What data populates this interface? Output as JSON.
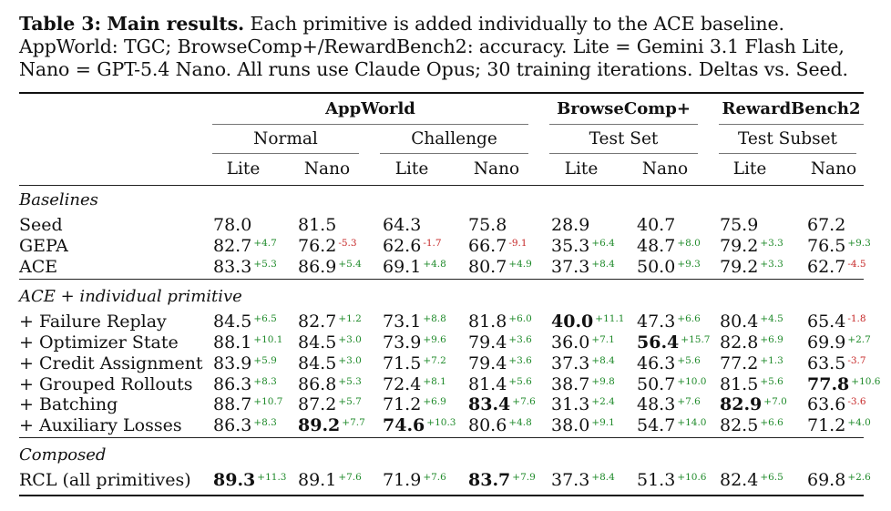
{
  "caption": {
    "label": "Table 3:",
    "title": "Main results.",
    "text": "Each primitive is added individually to the ACE baseline. AppWorld: TGC; BrowseComp+/RewardBench2: accuracy. Lite = Gemini 3.1 Flash Lite, Nano = GPT-5.4 Nano. All runs use Claude Opus; 30 training iterations. Deltas vs. Seed."
  },
  "header": {
    "groups": [
      "AppWorld",
      "BrowseComp+",
      "RewardBench2"
    ],
    "subgroups": [
      "Normal",
      "Challenge",
      "Test Set",
      "Test Subset"
    ],
    "models": [
      "Lite",
      "Nano",
      "Lite",
      "Nano",
      "Lite",
      "Nano",
      "Lite",
      "Nano"
    ]
  },
  "sections": [
    {
      "title": "Baselines",
      "rows": [
        {
          "label": "Seed",
          "cells": [
            {
              "v": "78.0"
            },
            {
              "v": "81.5"
            },
            {
              "v": "64.3"
            },
            {
              "v": "75.8"
            },
            {
              "v": "28.9"
            },
            {
              "v": "40.7"
            },
            {
              "v": "75.9"
            },
            {
              "v": "67.2"
            }
          ]
        },
        {
          "label": "GEPA",
          "cells": [
            {
              "v": "82.7",
              "d": "+4.7"
            },
            {
              "v": "76.2",
              "d": "-5.3"
            },
            {
              "v": "62.6",
              "d": "-1.7"
            },
            {
              "v": "66.7",
              "d": "-9.1"
            },
            {
              "v": "35.3",
              "d": "+6.4"
            },
            {
              "v": "48.7",
              "d": "+8.0"
            },
            {
              "v": "79.2",
              "d": "+3.3"
            },
            {
              "v": "76.5",
              "d": "+9.3"
            }
          ]
        },
        {
          "label": "ACE",
          "cells": [
            {
              "v": "83.3",
              "d": "+5.3"
            },
            {
              "v": "86.9",
              "d": "+5.4"
            },
            {
              "v": "69.1",
              "d": "+4.8"
            },
            {
              "v": "80.7",
              "d": "+4.9"
            },
            {
              "v": "37.3",
              "d": "+8.4"
            },
            {
              "v": "50.0",
              "d": "+9.3"
            },
            {
              "v": "79.2",
              "d": "+3.3"
            },
            {
              "v": "62.7",
              "d": "-4.5"
            }
          ]
        }
      ]
    },
    {
      "title": "ACE + individual primitive",
      "rows": [
        {
          "label": "+ Failure Replay",
          "cells": [
            {
              "v": "84.5",
              "d": "+6.5"
            },
            {
              "v": "82.7",
              "d": "+1.2"
            },
            {
              "v": "73.1",
              "d": "+8.8"
            },
            {
              "v": "81.8",
              "d": "+6.0"
            },
            {
              "v": "40.0",
              "d": "+11.1",
              "b": true
            },
            {
              "v": "47.3",
              "d": "+6.6"
            },
            {
              "v": "80.4",
              "d": "+4.5"
            },
            {
              "v": "65.4",
              "d": "-1.8"
            }
          ]
        },
        {
          "label": "+ Optimizer State",
          "cells": [
            {
              "v": "88.1",
              "d": "+10.1"
            },
            {
              "v": "84.5",
              "d": "+3.0"
            },
            {
              "v": "73.9",
              "d": "+9.6"
            },
            {
              "v": "79.4",
              "d": "+3.6"
            },
            {
              "v": "36.0",
              "d": "+7.1"
            },
            {
              "v": "56.4",
              "d": "+15.7",
              "b": true
            },
            {
              "v": "82.8",
              "d": "+6.9"
            },
            {
              "v": "69.9",
              "d": "+2.7"
            }
          ]
        },
        {
          "label": "+ Credit Assignment",
          "cells": [
            {
              "v": "83.9",
              "d": "+5.9"
            },
            {
              "v": "84.5",
              "d": "+3.0"
            },
            {
              "v": "71.5",
              "d": "+7.2"
            },
            {
              "v": "79.4",
              "d": "+3.6"
            },
            {
              "v": "37.3",
              "d": "+8.4"
            },
            {
              "v": "46.3",
              "d": "+5.6"
            },
            {
              "v": "77.2",
              "d": "+1.3"
            },
            {
              "v": "63.5",
              "d": "-3.7"
            }
          ]
        },
        {
          "label": "+ Grouped Rollouts",
          "cells": [
            {
              "v": "86.3",
              "d": "+8.3"
            },
            {
              "v": "86.8",
              "d": "+5.3"
            },
            {
              "v": "72.4",
              "d": "+8.1"
            },
            {
              "v": "81.4",
              "d": "+5.6"
            },
            {
              "v": "38.7",
              "d": "+9.8"
            },
            {
              "v": "50.7",
              "d": "+10.0"
            },
            {
              "v": "81.5",
              "d": "+5.6"
            },
            {
              "v": "77.8",
              "d": "+10.6",
              "b": true
            }
          ]
        },
        {
          "label": "+ Batching",
          "cells": [
            {
              "v": "88.7",
              "d": "+10.7"
            },
            {
              "v": "87.2",
              "d": "+5.7"
            },
            {
              "v": "71.2",
              "d": "+6.9"
            },
            {
              "v": "83.4",
              "d": "+7.6",
              "b": true
            },
            {
              "v": "31.3",
              "d": "+2.4"
            },
            {
              "v": "48.3",
              "d": "+7.6"
            },
            {
              "v": "82.9",
              "d": "+7.0",
              "b": true
            },
            {
              "v": "63.6",
              "d": "-3.6"
            }
          ]
        },
        {
          "label": "+ Auxiliary Losses",
          "cells": [
            {
              "v": "86.3",
              "d": "+8.3"
            },
            {
              "v": "89.2",
              "d": "+7.7",
              "b": true
            },
            {
              "v": "74.6",
              "d": "+10.3",
              "b": true
            },
            {
              "v": "80.6",
              "d": "+4.8"
            },
            {
              "v": "38.0",
              "d": "+9.1"
            },
            {
              "v": "54.7",
              "d": "+14.0"
            },
            {
              "v": "82.5",
              "d": "+6.6"
            },
            {
              "v": "71.2",
              "d": "+4.0"
            }
          ]
        }
      ]
    },
    {
      "title": "Composed",
      "rows": [
        {
          "label": "RCL (all primitives)",
          "cells": [
            {
              "v": "89.3",
              "d": "+11.3",
              "b": true
            },
            {
              "v": "89.1",
              "d": "+7.6"
            },
            {
              "v": "71.9",
              "d": "+7.6"
            },
            {
              "v": "83.7",
              "d": "+7.9",
              "b": true
            },
            {
              "v": "37.3",
              "d": "+8.4"
            },
            {
              "v": "51.3",
              "d": "+10.6"
            },
            {
              "v": "82.4",
              "d": "+6.5"
            },
            {
              "v": "69.8",
              "d": "+2.6"
            }
          ]
        }
      ]
    }
  ]
}
